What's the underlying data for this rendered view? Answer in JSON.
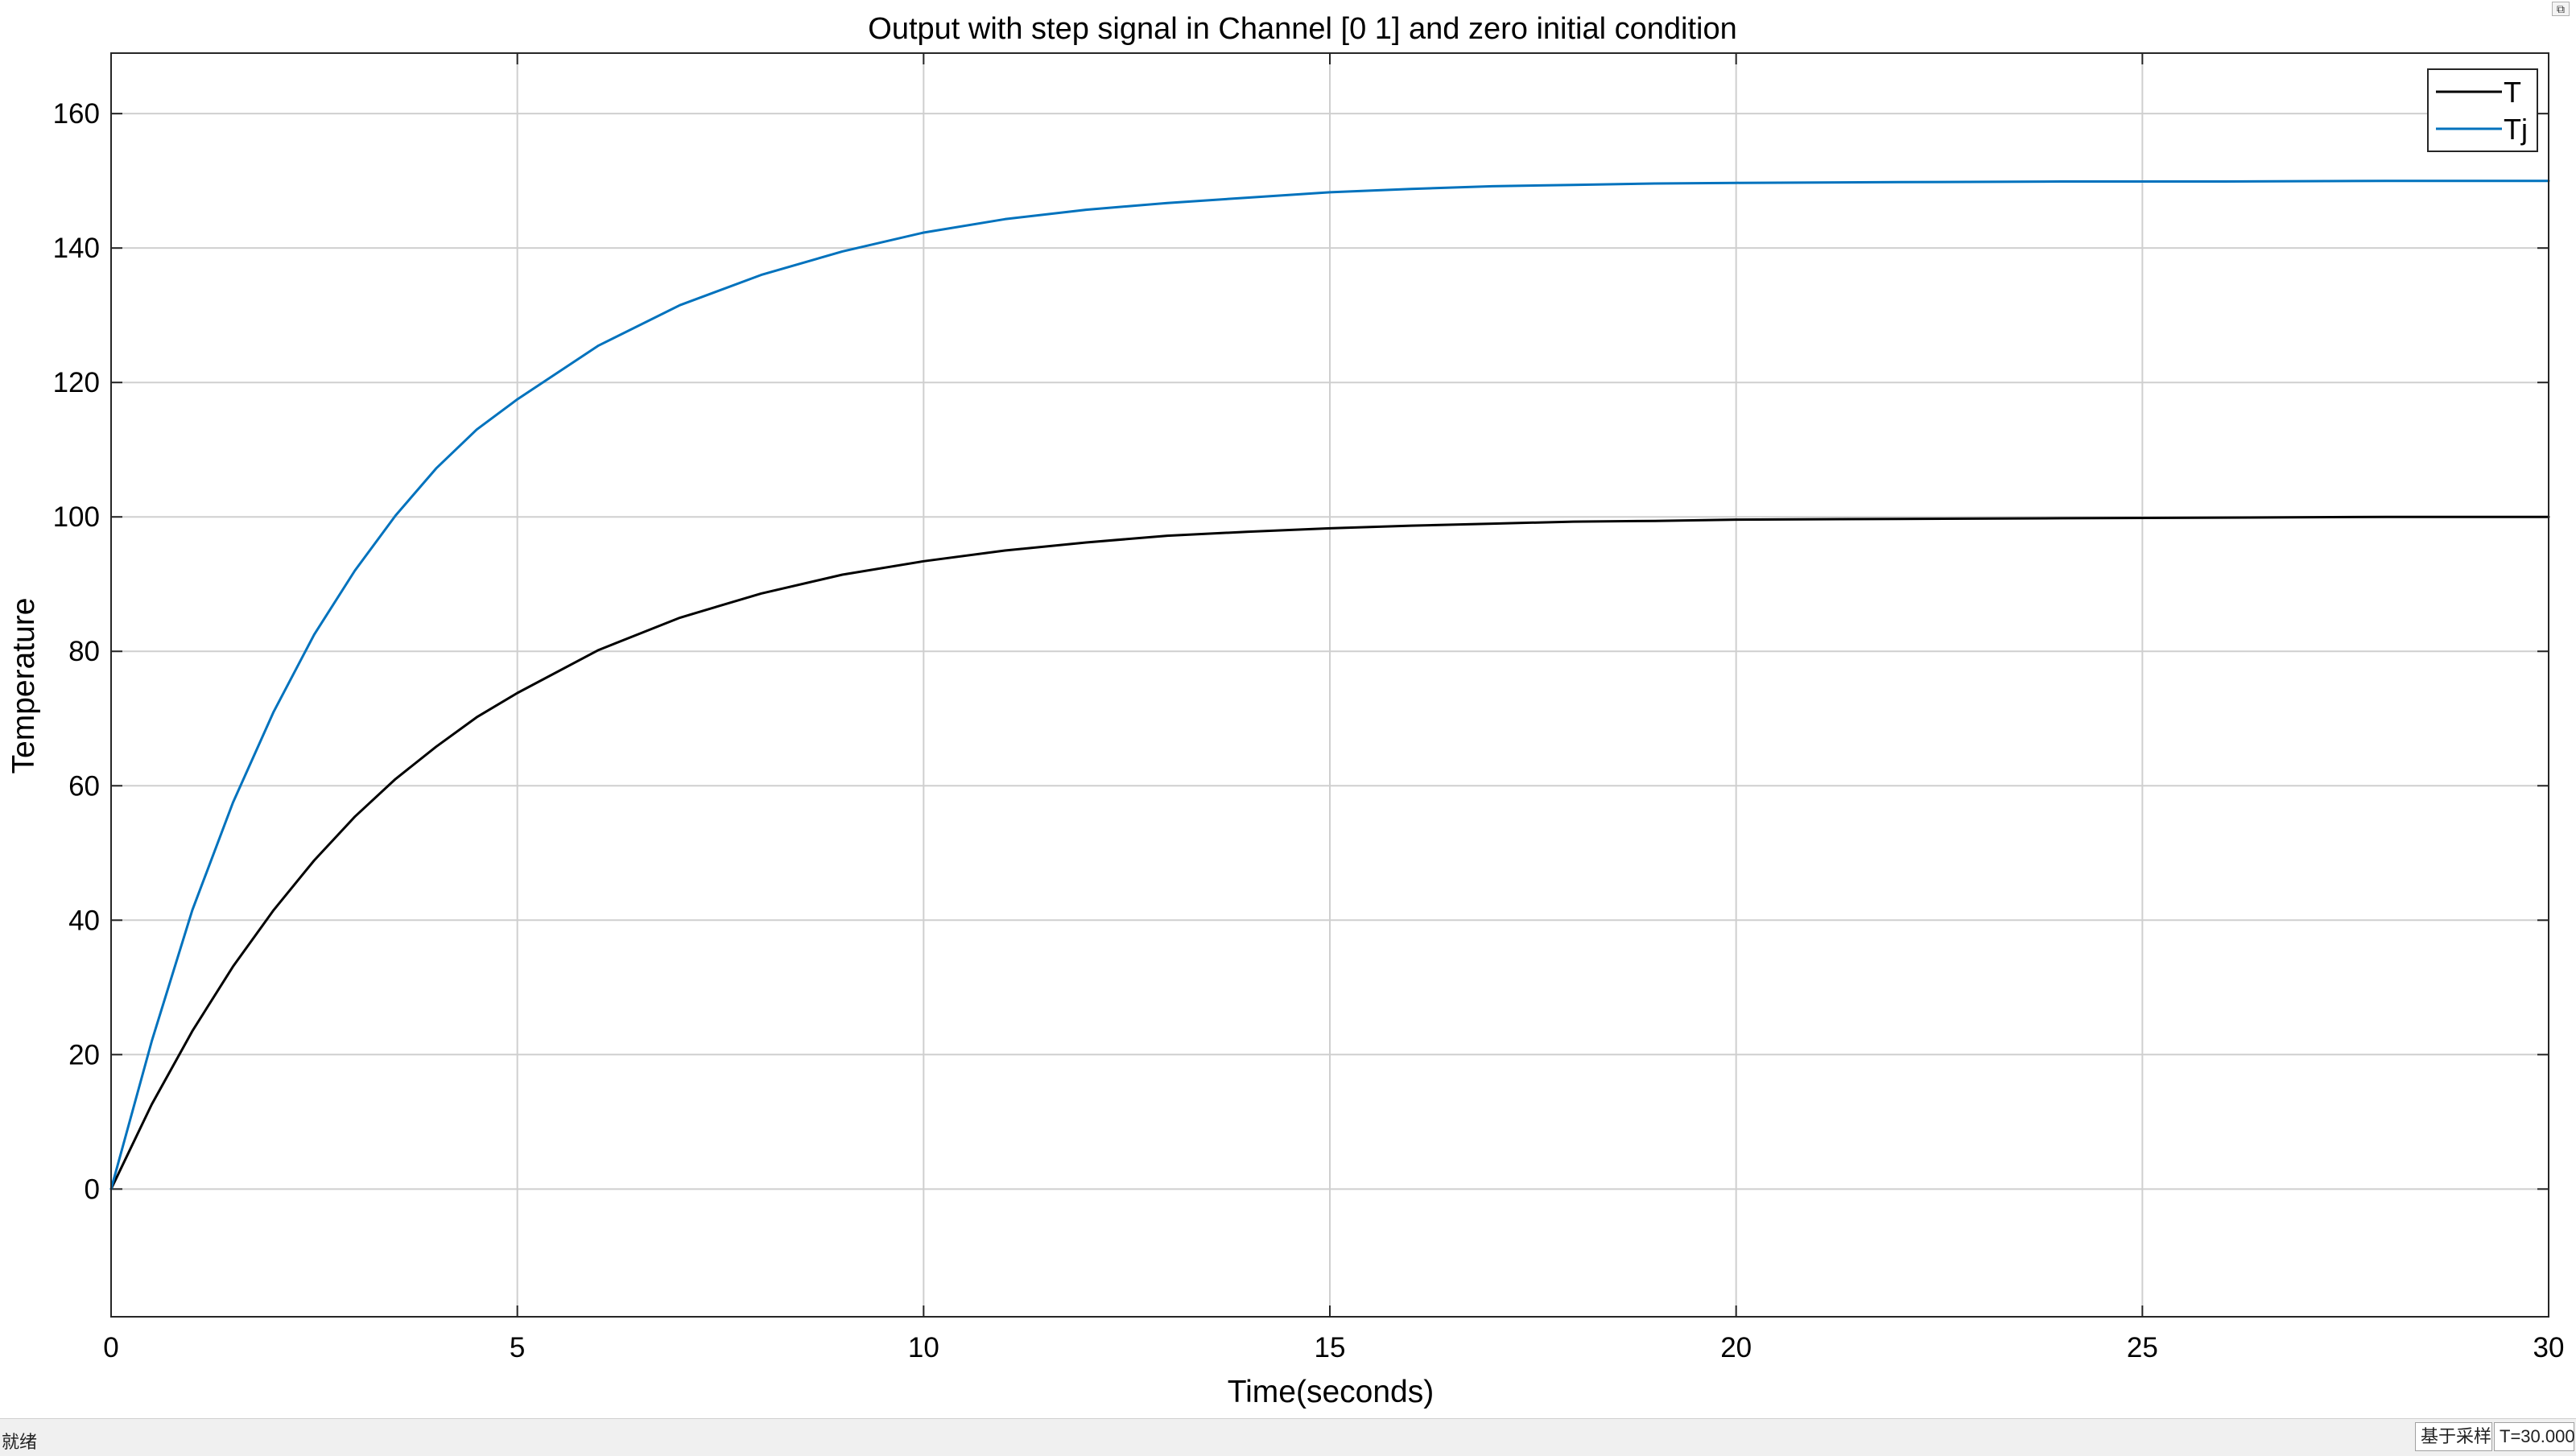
{
  "chart_data": {
    "type": "line",
    "title": "Output with step signal in Channel [0 1] and zero initial condition",
    "xlabel": "Time(seconds)",
    "ylabel": "Temperature",
    "xlim": [
      0,
      30
    ],
    "ylim": [
      -19,
      169
    ],
    "xticks": [
      0,
      5,
      10,
      15,
      20,
      25,
      30
    ],
    "yticks": [
      0,
      20,
      40,
      60,
      80,
      100,
      120,
      140,
      160
    ],
    "grid": true,
    "legend_position": "top-right",
    "x": [
      0,
      0.5,
      1,
      1.5,
      2,
      2.5,
      3,
      3.5,
      4,
      4.5,
      5,
      6,
      7,
      8,
      9,
      10,
      11,
      12,
      13,
      14,
      15,
      16,
      17,
      18,
      19,
      20,
      22,
      24,
      26,
      28,
      30
    ],
    "series": [
      {
        "name": "T",
        "color": "#000000",
        "values": [
          0,
          12.6,
          23.5,
          33.1,
          41.5,
          48.9,
          55.4,
          61.0,
          65.8,
          70.2,
          73.8,
          80.2,
          85.0,
          88.6,
          91.4,
          93.4,
          95.0,
          96.2,
          97.2,
          97.8,
          98.3,
          98.7,
          99.0,
          99.3,
          99.4,
          99.6,
          99.7,
          99.8,
          99.9,
          100.0,
          100.0
        ]
      },
      {
        "name": "Tj",
        "color": "#0072BD",
        "values": [
          0,
          22.0,
          41.5,
          57.5,
          71.0,
          82.5,
          92.0,
          100.2,
          107.2,
          113.0,
          117.5,
          125.5,
          131.5,
          136.0,
          139.5,
          142.3,
          144.3,
          145.7,
          146.7,
          147.5,
          148.3,
          148.8,
          149.2,
          149.4,
          149.6,
          149.7,
          149.8,
          149.9,
          149.9,
          150.0,
          150.0
        ]
      }
    ]
  },
  "status_bar": {
    "state_text": "就绪",
    "mode_text": "基于采样",
    "time_text": "T=30.000"
  },
  "window": {
    "corner_icon": "restore-icon"
  }
}
